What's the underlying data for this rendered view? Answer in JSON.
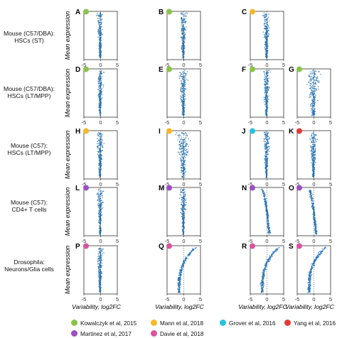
{
  "row_labels": [
    [
      "Mouse (C57/DBA):",
      "HSCs (ST)"
    ],
    [
      "Mouse (C57/DBA):",
      "HSCs (LT/MPP)"
    ],
    [
      "Mouse (C57):",
      "HSCs (LT/MPP)"
    ],
    [
      "Mouse (C57):",
      "CD4+ T cells"
    ],
    [
      "Drosophila:",
      "Neurons/Glia cells"
    ]
  ],
  "y_label": "Mean expression",
  "x_label": "Variability, log2FC",
  "legend": [
    {
      "label": "Kowalczyk et al, 2015",
      "color": "#8bc34a"
    },
    {
      "label": "Mann et al, 2018",
      "color": "#f6b829"
    },
    {
      "label": "Grover et al, 2016",
      "color": "#29c1e3"
    },
    {
      "label": "Yang et al, 2016",
      "color": "#e53935"
    },
    {
      "label": "Martinez et al, 2017",
      "color": "#9c4fc4"
    },
    {
      "label": "Davie et al, 2018",
      "color": "#d6559f"
    }
  ],
  "chart_data": {
    "type": "scatter",
    "x_ticks": [
      "-5",
      "0",
      "5"
    ],
    "xlim": [
      -5,
      5
    ],
    "point_color": "#2a78b8",
    "panels": [
      {
        "letter": "A",
        "row": 0,
        "col": 0,
        "dataset": "Kowalczyk et al, 2015",
        "dot_color": "#8bc34a",
        "shape": "vertical",
        "spread": 0.45
      },
      {
        "letter": "B",
        "row": 0,
        "col": 1,
        "dataset": "Kowalczyk et al, 2015",
        "dot_color": "#8bc34a",
        "shape": "vertical",
        "spread": 0.6
      },
      {
        "letter": "C",
        "row": 0,
        "col": 2,
        "dataset": "Mann et al, 2018",
        "dot_color": "#f6b829",
        "shape": "vertical",
        "spread": 0.6
      },
      {
        "letter": "D",
        "row": 1,
        "col": 0,
        "dataset": "Kowalczyk et al, 2015",
        "dot_color": "#8bc34a",
        "shape": "vertical",
        "spread": 0.5
      },
      {
        "letter": "E",
        "row": 1,
        "col": 1,
        "dataset": "Kowalczyk et al, 2015",
        "dot_color": "#8bc34a",
        "shape": "vertical",
        "spread": 0.7
      },
      {
        "letter": "F",
        "row": 1,
        "col": 2,
        "dataset": "Kowalczyk et al, 2015",
        "dot_color": "#8bc34a",
        "shape": "vertical",
        "spread": 0.6
      },
      {
        "letter": "G",
        "row": 1,
        "col": 3,
        "dataset": "Kowalczyk et al, 2015",
        "dot_color": "#8bc34a",
        "shape": "vertical",
        "spread": 1.1
      },
      {
        "letter": "H",
        "row": 2,
        "col": 0,
        "dataset": "Mann et al, 2018",
        "dot_color": "#f6b829",
        "shape": "vertical",
        "spread": 0.6
      },
      {
        "letter": "I",
        "row": 2,
        "col": 1,
        "dataset": "Mann et al, 2018",
        "dot_color": "#f6b829",
        "shape": "vertical",
        "spread": 1.1
      },
      {
        "letter": "J",
        "row": 2,
        "col": 2,
        "dataset": "Grover et al, 2016",
        "dot_color": "#29c1e3",
        "shape": "vertical",
        "spread": 0.55
      },
      {
        "letter": "K",
        "row": 2,
        "col": 3,
        "dataset": "Yang et al, 2016",
        "dot_color": "#e53935",
        "shape": "vertical",
        "spread": 0.6
      },
      {
        "letter": "L",
        "row": 3,
        "col": 0,
        "dataset": "Martinez et al, 2017",
        "dot_color": "#9c4fc4",
        "shape": "vertical",
        "spread": 0.5
      },
      {
        "letter": "M",
        "row": 3,
        "col": 1,
        "dataset": "Martinez et al, 2017",
        "dot_color": "#9c4fc4",
        "shape": "vertical",
        "spread": 0.55
      },
      {
        "letter": "N",
        "row": 3,
        "col": 2,
        "dataset": "Martinez et al, 2017",
        "dot_color": "#9c4fc4",
        "shape": "curve_left",
        "spread": 0.35
      },
      {
        "letter": "O",
        "row": 3,
        "col": 3,
        "dataset": "Martinez et al, 2017",
        "dot_color": "#9c4fc4",
        "shape": "curve_left",
        "spread": 0.35
      },
      {
        "letter": "P",
        "row": 4,
        "col": 0,
        "dataset": "Davie et al, 2018",
        "dot_color": "#d6559f",
        "shape": "vertical",
        "spread": 0.55
      },
      {
        "letter": "Q",
        "row": 4,
        "col": 1,
        "dataset": "Davie et al, 2018",
        "dot_color": "#d6559f",
        "shape": "curve_right",
        "spread": 0.4
      },
      {
        "letter": "R",
        "row": 4,
        "col": 2,
        "dataset": "Davie et al, 2018",
        "dot_color": "#d6559f",
        "shape": "curve_right",
        "spread": 0.4
      },
      {
        "letter": "S",
        "row": 4,
        "col": 3,
        "dataset": "Davie et al, 2018",
        "dot_color": "#d6559f",
        "shape": "curve_right",
        "spread": 0.45
      }
    ]
  }
}
